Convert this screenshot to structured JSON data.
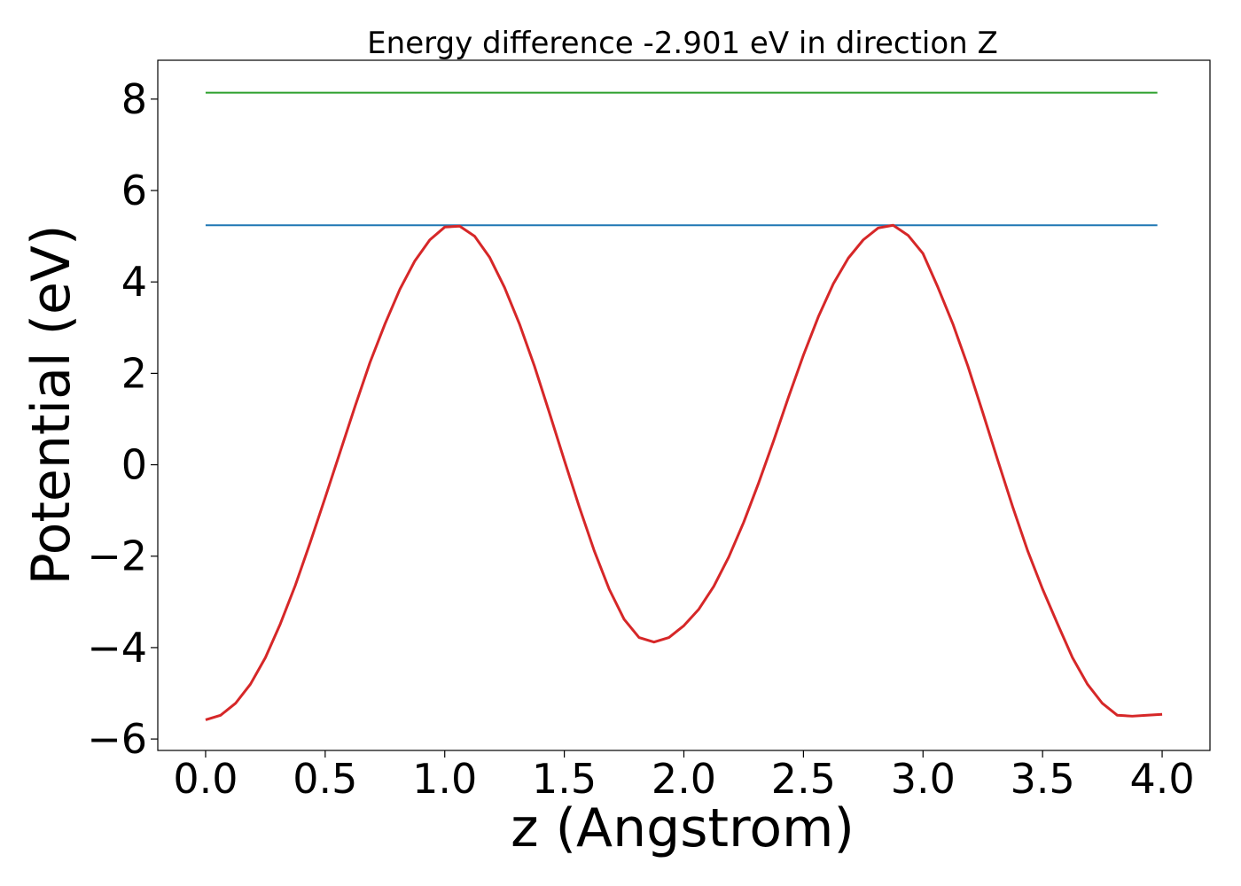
{
  "chart_data": {
    "type": "line",
    "title": "Energy difference -2.901 eV in direction Z",
    "xlabel": "z (Angstrom)",
    "ylabel": "Potential (eV)",
    "xlim": [
      -0.2,
      4.2
    ],
    "ylim": [
      -6.25,
      8.85
    ],
    "x_ticks": [
      0.0,
      0.5,
      1.0,
      1.5,
      2.0,
      2.5,
      3.0,
      3.5,
      4.0
    ],
    "x_tick_labels": [
      "0.0",
      "0.5",
      "1.0",
      "1.5",
      "2.0",
      "2.5",
      "3.0",
      "3.5",
      "4.0"
    ],
    "y_ticks": [
      -6,
      -4,
      -2,
      0,
      2,
      4,
      6,
      8
    ],
    "y_tick_labels": [
      "−6",
      "−4",
      "−2",
      "0",
      "2",
      "4",
      "6",
      "8"
    ],
    "grid": false,
    "series": [
      {
        "color": "#2ca02c",
        "x": [
          0.0,
          3.98
        ],
        "y": [
          8.14,
          8.14
        ]
      },
      {
        "color": "#1f77b4",
        "x": [
          0.0,
          3.98
        ],
        "y": [
          5.24,
          5.24
        ]
      },
      {
        "color": "#d62728",
        "x": [
          0.0,
          0.0625,
          0.125,
          0.1875,
          0.25,
          0.3125,
          0.375,
          0.4375,
          0.5,
          0.5625,
          0.625,
          0.6875,
          0.75,
          0.8125,
          0.875,
          0.9375,
          1.0,
          1.0625,
          1.125,
          1.1875,
          1.25,
          1.3125,
          1.375,
          1.4375,
          1.5,
          1.5625,
          1.625,
          1.6875,
          1.75,
          1.8125,
          1.875,
          1.9375,
          2.0,
          2.0625,
          2.125,
          2.1875,
          2.25,
          2.3125,
          2.375,
          2.4375,
          2.5,
          2.5625,
          2.625,
          2.6875,
          2.75,
          2.8125,
          2.875,
          2.9375,
          3.0,
          3.0625,
          3.125,
          3.1875,
          3.25,
          3.3125,
          3.375,
          3.4375,
          3.5,
          3.5625,
          3.625,
          3.6875,
          3.75,
          3.8125,
          3.875,
          3.9375,
          4.0
        ],
        "y": [
          -5.58,
          -5.48,
          -5.22,
          -4.8,
          -4.22,
          -3.48,
          -2.64,
          -1.7,
          -0.72,
          0.28,
          1.28,
          2.24,
          3.08,
          3.84,
          4.46,
          4.92,
          5.2,
          5.22,
          5.0,
          4.54,
          3.88,
          3.08,
          2.16,
          1.14,
          0.1,
          -0.92,
          -1.88,
          -2.72,
          -3.38,
          -3.78,
          -3.88,
          -3.78,
          -3.52,
          -3.16,
          -2.66,
          -2.02,
          -1.26,
          -0.4,
          0.52,
          1.48,
          2.4,
          3.24,
          3.96,
          4.52,
          4.92,
          5.18,
          5.24,
          5.02,
          4.62,
          3.88,
          3.08,
          2.16,
          1.14,
          0.1,
          -0.92,
          -1.88,
          -2.72,
          -3.48,
          -4.22,
          -4.8,
          -5.22,
          -5.48,
          -5.5,
          -5.48,
          -5.46
        ]
      }
    ]
  }
}
